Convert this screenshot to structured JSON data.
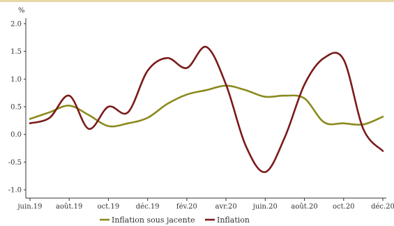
{
  "chart_data": {
    "type": "line",
    "title": "",
    "xlabel": "",
    "ylabel": "%",
    "ylim": [
      -1.1,
      2.1
    ],
    "yticks": [
      "2.0",
      "1.5",
      "1.0",
      "0.5",
      "0.0",
      "-0.5",
      "-1.0"
    ],
    "ytick_values": [
      2.0,
      1.5,
      1.0,
      0.5,
      0.0,
      -0.5,
      -1.0
    ],
    "x_categories": [
      "juin.19",
      "août.19",
      "oct.19",
      "déc.19",
      "fév.20",
      "avr.20",
      "juin.20",
      "août.20",
      "oct.20",
      "déc.20"
    ],
    "x_positions": [
      0,
      2,
      4,
      6,
      8,
      10,
      12,
      14,
      16,
      18
    ],
    "xlim": [
      0,
      18
    ],
    "grid": false,
    "legend_placement": "bottom",
    "series": [
      {
        "name": "Inflation sous jacente",
        "color": "#8a8a1e",
        "x": [
          0,
          1,
          2,
          3,
          4,
          5,
          6,
          7,
          8,
          9,
          10,
          11,
          12,
          13,
          14,
          15,
          16,
          17,
          18
        ],
        "values": [
          0.28,
          0.4,
          0.52,
          0.35,
          0.15,
          0.2,
          0.3,
          0.55,
          0.72,
          0.8,
          0.88,
          0.8,
          0.68,
          0.7,
          0.65,
          0.22,
          0.2,
          0.18,
          0.32
        ]
      },
      {
        "name": "Inflation",
        "color": "#7a1a1a",
        "x": [
          0,
          1,
          2,
          3,
          4,
          5,
          6,
          7,
          8,
          9,
          10,
          11,
          12,
          13,
          14,
          15,
          16,
          17,
          18
        ],
        "values": [
          0.2,
          0.3,
          0.7,
          0.1,
          0.5,
          0.4,
          1.15,
          1.38,
          1.2,
          1.58,
          0.9,
          -0.2,
          -0.68,
          -0.05,
          0.9,
          1.38,
          1.35,
          0.1,
          -0.3
        ]
      }
    ]
  }
}
